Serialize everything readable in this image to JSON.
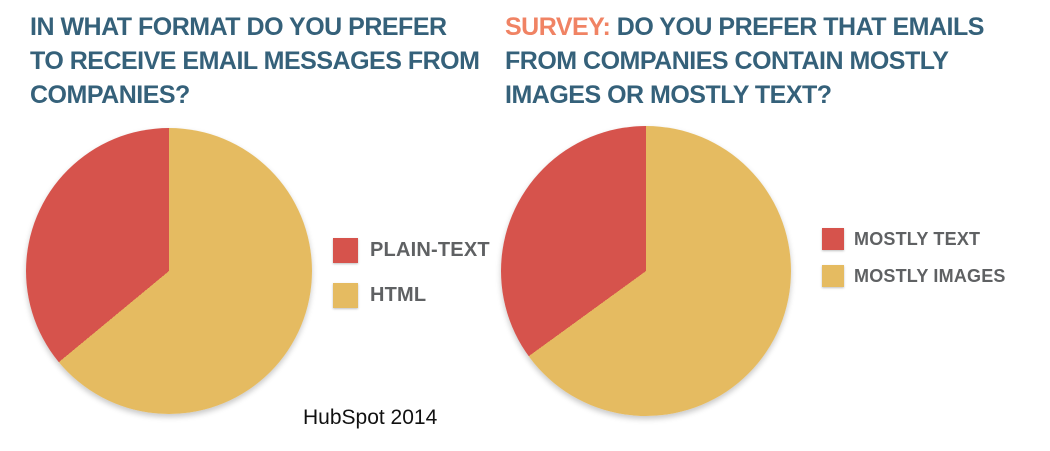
{
  "colors": {
    "slice_red": "#D6534C",
    "slice_yellow": "#E5BB61",
    "title_teal": "#35617A",
    "title_orange": "#F08364",
    "legend_text": "#5F6163",
    "source_text": "#111111",
    "background": "#FFFFFF"
  },
  "left_chart": {
    "title": "IN WHAT FORMAT DO YOU PREFER\nTO RECEIVE EMAIL MESSAGES FROM\nCOMPANIES?",
    "source": "HubSpot 2014"
  },
  "right_chart": {
    "title_prefix": "SURVEY:",
    "title_rest": " DO YOU PREFER THAT EMAILS\nFROM COMPANIES CONTAIN MOSTLY\nIMAGES OR MOSTLY TEXT?"
  },
  "chart_data": [
    {
      "type": "pie",
      "title": "IN WHAT FORMAT DO YOU PREFER TO RECEIVE EMAIL MESSAGES FROM COMPANIES?",
      "slices": [
        {
          "label": "PLAIN-TEXT",
          "value": 36,
          "color": "#D6534C"
        },
        {
          "label": "HTML",
          "value": 64,
          "color": "#E5BB61"
        }
      ],
      "start_angle_deg": 230.4,
      "legend_position": "right",
      "source": "HubSpot 2014",
      "values_are_estimates_from_slice_angles": true
    },
    {
      "type": "pie",
      "title": "SURVEY: DO YOU PREFER THAT EMAILS FROM COMPANIES CONTAIN MOSTLY IMAGES OR MOSTLY TEXT?",
      "slices": [
        {
          "label": "MOSTLY TEXT",
          "value": 35,
          "color": "#D6534C"
        },
        {
          "label": "MOSTLY IMAGES",
          "value": 65,
          "color": "#E5BB61"
        }
      ],
      "start_angle_deg": 234,
      "legend_position": "right",
      "values_are_estimates_from_slice_angles": true
    }
  ]
}
